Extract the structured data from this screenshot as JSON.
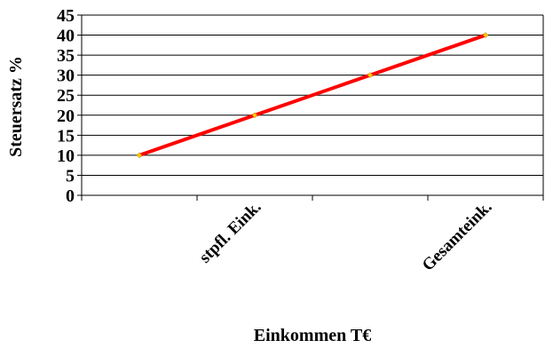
{
  "chart_data": {
    "type": "line",
    "title": "",
    "xlabel": "Einkommen T€",
    "ylabel": "Steuersatz  %",
    "ylim": [
      0,
      45
    ],
    "y_ticks": [
      "0",
      "5",
      "10",
      "15",
      "20",
      "25",
      "30",
      "35",
      "40",
      "45"
    ],
    "x_tick_labels": [
      "",
      "stpfl. Eink.",
      "",
      "Gesamteink."
    ],
    "series": [
      {
        "values": [
          10,
          20,
          30,
          40
        ],
        "color": "#ff0000",
        "marker_color": "#ffcc00"
      }
    ],
    "grid": true,
    "legend": "none"
  }
}
